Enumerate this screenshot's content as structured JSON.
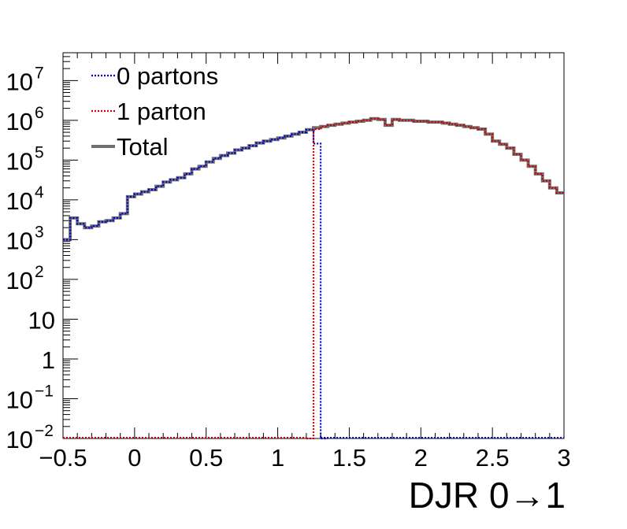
{
  "chart_data": {
    "type": "line",
    "xlabel": "DJR 0→1",
    "ylabel": "",
    "title": "",
    "xlim": [
      -0.5,
      3.0
    ],
    "ylim": [
      0.01,
      50000000
    ],
    "y_scale": "log",
    "grid": false,
    "legend_position": "top-left",
    "x_ticks": [
      {
        "value": -0.5,
        "label": "−0.5"
      },
      {
        "value": 0,
        "label": "0"
      },
      {
        "value": 0.5,
        "label": "0.5"
      },
      {
        "value": 1,
        "label": "1"
      },
      {
        "value": 1.5,
        "label": "1.5"
      },
      {
        "value": 2,
        "label": "2"
      },
      {
        "value": 2.5,
        "label": "2.5"
      },
      {
        "value": 3,
        "label": "3"
      }
    ],
    "y_ticks": [
      {
        "value": 0.01,
        "base": "10",
        "exp": "−2"
      },
      {
        "value": 0.1,
        "base": "10",
        "exp": "−1"
      },
      {
        "value": 1,
        "base": "1",
        "exp": ""
      },
      {
        "value": 10,
        "base": "10",
        "exp": ""
      },
      {
        "value": 100,
        "base": "10",
        "exp": "2"
      },
      {
        "value": 1000,
        "base": "10",
        "exp": "3"
      },
      {
        "value": 10000,
        "base": "10",
        "exp": "4"
      },
      {
        "value": 100000,
        "base": "10",
        "exp": "5"
      },
      {
        "value": 1000000,
        "base": "10",
        "exp": "6"
      },
      {
        "value": 10000000,
        "base": "10",
        "exp": "7"
      }
    ],
    "series": [
      {
        "name": "0 partons",
        "color": "#0000cc",
        "style": "dotted",
        "x": [
          -0.5,
          -0.45,
          -0.4,
          -0.35,
          -0.3,
          -0.25,
          -0.2,
          -0.15,
          -0.1,
          -0.05,
          0.0,
          0.05,
          0.1,
          0.15,
          0.2,
          0.25,
          0.3,
          0.35,
          0.4,
          0.45,
          0.5,
          0.55,
          0.6,
          0.65,
          0.7,
          0.75,
          0.8,
          0.85,
          0.9,
          0.95,
          1.0,
          1.05,
          1.1,
          1.15,
          1.2,
          1.25,
          1.3
        ],
        "values": [
          1000,
          3500,
          2500,
          2000,
          2200,
          2800,
          3000,
          3500,
          4500,
          12000,
          14000,
          16000,
          18000,
          22000,
          28000,
          32000,
          36000,
          45000,
          60000,
          70000,
          90000,
          110000,
          130000,
          150000,
          180000,
          200000,
          230000,
          270000,
          300000,
          330000,
          360000,
          400000,
          450000,
          500000,
          580000,
          260000,
          0.01
        ]
      },
      {
        "name": "1 parton",
        "color": "#cc0000",
        "style": "dotted",
        "x": [
          1.2,
          1.25,
          1.3,
          1.35,
          1.4,
          1.45,
          1.5,
          1.55,
          1.6,
          1.65,
          1.7,
          1.75,
          1.8,
          1.85,
          1.9,
          1.95,
          2.0,
          2.05,
          2.1,
          2.15,
          2.2,
          2.25,
          2.3,
          2.35,
          2.4,
          2.45,
          2.5,
          2.55,
          2.6,
          2.65,
          2.7,
          2.75,
          2.8,
          2.85,
          2.9,
          2.95,
          3.0
        ],
        "values": [
          0.01,
          600000,
          700000,
          750000,
          800000,
          850000,
          900000,
          950000,
          1000000,
          1100000,
          1050000,
          750000,
          1050000,
          1000000,
          1000000,
          950000,
          950000,
          900000,
          900000,
          850000,
          800000,
          750000,
          700000,
          650000,
          600000,
          450000,
          300000,
          250000,
          200000,
          140000,
          100000,
          70000,
          45000,
          30000,
          20000,
          15000,
          15000
        ]
      },
      {
        "name": "Total",
        "color": "#707070",
        "style": "solid",
        "x": [
          -0.5,
          -0.45,
          -0.4,
          -0.35,
          -0.3,
          -0.25,
          -0.2,
          -0.15,
          -0.1,
          -0.05,
          0.0,
          0.05,
          0.1,
          0.15,
          0.2,
          0.25,
          0.3,
          0.35,
          0.4,
          0.45,
          0.5,
          0.55,
          0.6,
          0.65,
          0.7,
          0.75,
          0.8,
          0.85,
          0.9,
          0.95,
          1.0,
          1.05,
          1.1,
          1.15,
          1.2,
          1.25,
          1.3,
          1.35,
          1.4,
          1.45,
          1.5,
          1.55,
          1.6,
          1.65,
          1.7,
          1.75,
          1.8,
          1.85,
          1.9,
          1.95,
          2.0,
          2.05,
          2.1,
          2.15,
          2.2,
          2.25,
          2.3,
          2.35,
          2.4,
          2.45,
          2.5,
          2.55,
          2.6,
          2.65,
          2.7,
          2.75,
          2.8,
          2.85,
          2.9,
          2.95,
          3.0
        ],
        "values": [
          1000,
          3500,
          2500,
          2000,
          2200,
          2800,
          3000,
          3500,
          4500,
          12000,
          14000,
          16000,
          18000,
          22000,
          28000,
          32000,
          36000,
          45000,
          60000,
          70000,
          90000,
          110000,
          130000,
          150000,
          180000,
          200000,
          230000,
          270000,
          300000,
          330000,
          360000,
          400000,
          450000,
          500000,
          580000,
          650000,
          700000,
          750000,
          800000,
          850000,
          900000,
          950000,
          1000000,
          1100000,
          1050000,
          750000,
          1050000,
          1000000,
          1000000,
          950000,
          950000,
          900000,
          900000,
          850000,
          800000,
          750000,
          700000,
          650000,
          600000,
          450000,
          300000,
          250000,
          200000,
          140000,
          100000,
          70000,
          45000,
          30000,
          20000,
          15000,
          15000
        ]
      }
    ]
  }
}
